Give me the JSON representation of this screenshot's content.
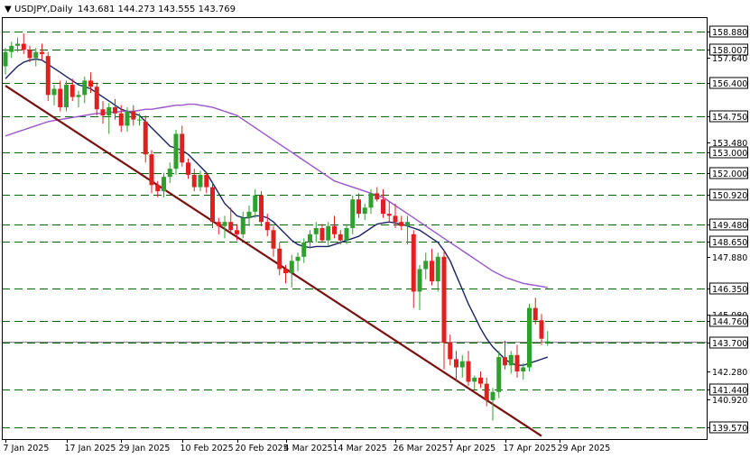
{
  "header": {
    "arrow": "▼",
    "symbol": "USDJPY,Daily",
    "ohlc": "143.681 144.273 143.555 143.769"
  },
  "chart_data": {
    "type": "candlestick",
    "symbol": "USDJPY",
    "timeframe": "Daily",
    "ylim": [
      139.0,
      159.6
    ],
    "y_ticks": [
      {
        "value": 158.88,
        "label": "158.880",
        "boxed": true
      },
      {
        "value": 158.007,
        "label": "158.007",
        "boxed": true
      },
      {
        "value": 157.64,
        "label": "157.640",
        "boxed": false
      },
      {
        "value": 156.4,
        "label": "156.400",
        "boxed": true
      },
      {
        "value": 154.75,
        "label": "154.750",
        "boxed": true
      },
      {
        "value": 153.48,
        "label": "153.480",
        "boxed": false
      },
      {
        "value": 153.0,
        "label": "153.000",
        "boxed": true
      },
      {
        "value": 152.0,
        "label": "152.000",
        "boxed": true
      },
      {
        "value": 150.92,
        "label": "150.920",
        "boxed": true
      },
      {
        "value": 149.48,
        "label": "149.480",
        "boxed": true
      },
      {
        "value": 148.65,
        "label": "148.650",
        "boxed": true
      },
      {
        "value": 147.88,
        "label": "147.880",
        "boxed": false
      },
      {
        "value": 146.35,
        "label": "146.350",
        "boxed": true
      },
      {
        "value": 145.08,
        "label": "145.080",
        "boxed": false
      },
      {
        "value": 144.76,
        "label": "144.760",
        "boxed": true
      },
      {
        "value": 143.7,
        "label": "143.700",
        "boxed": true
      },
      {
        "value": 142.28,
        "label": "142.280",
        "boxed": false
      },
      {
        "value": 141.44,
        "label": "141.440",
        "boxed": true
      },
      {
        "value": 140.92,
        "label": "140.920",
        "boxed": false
      },
      {
        "value": 139.57,
        "label": "139.570",
        "boxed": true
      }
    ],
    "levels": [
      158.88,
      158.007,
      156.4,
      154.75,
      153.0,
      152.0,
      150.92,
      149.48,
      148.65,
      146.35,
      144.76,
      143.7,
      141.44,
      139.57
    ],
    "current_price_line": 143.769,
    "x_labels": [
      {
        "bar": 0,
        "label": "7 Jan 2025"
      },
      {
        "bar": 10,
        "label": "17 Jan 2025"
      },
      {
        "bar": 19,
        "label": "29 Jan 2025"
      },
      {
        "bar": 29,
        "label": "10 Feb 2025"
      },
      {
        "bar": 38,
        "label": "20 Feb 2025"
      },
      {
        "bar": 46,
        "label": "4 Mar 2025"
      },
      {
        "bar": 54,
        "label": "14 Mar 2025"
      },
      {
        "bar": 64,
        "label": "26 Mar 2025"
      },
      {
        "bar": 73,
        "label": "7 Apr 2025"
      },
      {
        "bar": 82,
        "label": "17 Apr 2025"
      },
      {
        "bar": 91,
        "label": "29 Apr 2025"
      }
    ],
    "candles": [
      [
        157.2,
        158.1,
        156.8,
        157.9
      ],
      [
        157.9,
        158.4,
        157.6,
        158.2
      ],
      [
        158.2,
        158.6,
        157.9,
        158.3
      ],
      [
        158.3,
        158.8,
        157.8,
        158.0
      ],
      [
        158.0,
        158.2,
        157.4,
        157.6
      ],
      [
        157.6,
        158.1,
        157.2,
        157.9
      ],
      [
        157.9,
        158.3,
        157.5,
        157.8
      ],
      [
        157.7,
        157.9,
        155.5,
        155.8
      ],
      [
        155.8,
        156.3,
        155.3,
        156.1
      ],
      [
        156.1,
        156.5,
        155.0,
        155.2
      ],
      [
        155.2,
        156.5,
        155.0,
        156.3
      ],
      [
        156.3,
        156.6,
        155.5,
        155.7
      ],
      [
        155.7,
        156.0,
        155.2,
        155.8
      ],
      [
        155.8,
        156.7,
        155.4,
        156.5
      ],
      [
        156.5,
        156.9,
        155.9,
        156.2
      ],
      [
        156.2,
        156.4,
        154.8,
        155.1
      ],
      [
        155.1,
        155.5,
        154.4,
        154.8
      ],
      [
        154.8,
        155.4,
        153.9,
        155.2
      ],
      [
        155.2,
        155.6,
        154.6,
        154.9
      ],
      [
        154.9,
        155.3,
        154.0,
        154.3
      ],
      [
        154.3,
        155.2,
        154.0,
        155.0
      ],
      [
        155.0,
        155.3,
        154.3,
        154.6
      ],
      [
        154.6,
        154.9,
        154.3,
        154.6
      ],
      [
        154.5,
        154.8,
        152.5,
        152.9
      ],
      [
        152.9,
        153.1,
        151.0,
        151.4
      ],
      [
        151.4,
        151.6,
        150.8,
        151.1
      ],
      [
        151.1,
        152.0,
        150.8,
        151.8
      ],
      [
        151.8,
        152.5,
        151.5,
        152.2
      ],
      [
        152.2,
        154.1,
        151.9,
        153.9
      ],
      [
        153.9,
        154.3,
        152.3,
        152.5
      ],
      [
        152.5,
        152.7,
        151.7,
        151.9
      ],
      [
        151.9,
        152.2,
        151.1,
        151.3
      ],
      [
        151.3,
        152.1,
        151.1,
        151.9
      ],
      [
        151.9,
        152.0,
        151.0,
        151.3
      ],
      [
        151.3,
        151.5,
        149.3,
        149.6
      ],
      [
        149.6,
        149.8,
        149.0,
        149.4
      ],
      [
        149.4,
        149.9,
        148.8,
        149.6
      ],
      [
        149.6,
        150.3,
        149.1,
        149.2
      ],
      [
        149.2,
        149.5,
        148.7,
        149.0
      ],
      [
        149.0,
        150.1,
        148.8,
        149.8
      ],
      [
        149.8,
        150.4,
        149.4,
        150.1
      ],
      [
        150.1,
        151.2,
        149.8,
        150.9
      ],
      [
        150.9,
        151.1,
        149.4,
        149.6
      ],
      [
        149.6,
        150.0,
        148.9,
        149.2
      ],
      [
        149.2,
        149.4,
        147.9,
        148.3
      ],
      [
        148.3,
        148.6,
        147.0,
        147.3
      ],
      [
        147.3,
        147.5,
        146.6,
        147.1
      ],
      [
        147.1,
        148.0,
        146.4,
        147.7
      ],
      [
        147.7,
        148.1,
        147.2,
        147.9
      ],
      [
        147.9,
        148.8,
        147.6,
        148.6
      ],
      [
        148.6,
        149.2,
        148.3,
        149.0
      ],
      [
        149.0,
        149.6,
        148.6,
        149.3
      ],
      [
        149.3,
        149.5,
        148.6,
        148.7
      ],
      [
        148.7,
        149.6,
        148.4,
        149.4
      ],
      [
        149.4,
        149.9,
        148.8,
        149.0
      ],
      [
        149.0,
        149.2,
        148.5,
        148.7
      ],
      [
        148.7,
        149.5,
        148.5,
        149.3
      ],
      [
        149.3,
        150.9,
        149.0,
        150.7
      ],
      [
        150.7,
        151.0,
        149.8,
        150.0
      ],
      [
        150.0,
        150.5,
        149.7,
        150.3
      ],
      [
        150.3,
        151.2,
        150.0,
        151.0
      ],
      [
        151.0,
        151.3,
        150.6,
        150.7
      ],
      [
        150.7,
        151.2,
        149.8,
        150.0
      ],
      [
        150.0,
        150.6,
        149.6,
        149.9
      ],
      [
        149.9,
        150.5,
        149.3,
        149.6
      ],
      [
        149.6,
        149.9,
        149.2,
        149.4
      ],
      [
        149.4,
        149.9,
        148.5,
        149.6
      ],
      [
        149.0,
        149.2,
        145.4,
        146.2
      ],
      [
        146.2,
        147.5,
        145.3,
        147.3
      ],
      [
        147.3,
        148.1,
        146.8,
        147.7
      ],
      [
        147.7,
        148.3,
        146.5,
        146.7
      ],
      [
        146.7,
        148.1,
        146.2,
        147.9
      ],
      [
        147.9,
        148.2,
        142.4,
        143.7
      ],
      [
        143.7,
        144.1,
        142.6,
        142.9
      ],
      [
        142.9,
        143.3,
        141.8,
        142.5
      ],
      [
        142.5,
        143.1,
        142.0,
        142.8
      ],
      [
        142.8,
        143.3,
        141.6,
        141.8
      ],
      [
        141.8,
        142.1,
        141.4,
        142.0
      ],
      [
        142.0,
        142.3,
        141.5,
        141.7
      ],
      [
        141.7,
        142.0,
        140.6,
        140.9
      ],
      [
        140.9,
        141.5,
        139.9,
        141.3
      ],
      [
        141.3,
        143.3,
        141.0,
        143.0
      ],
      [
        143.0,
        143.8,
        142.4,
        142.6
      ],
      [
        142.6,
        143.3,
        142.2,
        143.1
      ],
      [
        143.1,
        143.6,
        142.0,
        142.3
      ],
      [
        142.3,
        142.7,
        141.9,
        142.5
      ],
      [
        142.5,
        145.6,
        142.3,
        145.4
      ],
      [
        145.4,
        145.9,
        144.6,
        144.8
      ],
      [
        144.8,
        145.1,
        143.6,
        143.9
      ],
      [
        143.681,
        144.273,
        143.555,
        143.769
      ]
    ],
    "moving_averages": [
      {
        "color": "#1a2266",
        "values": [
          156.6,
          156.9,
          157.2,
          157.4,
          157.5,
          157.55,
          157.5,
          157.3,
          157.1,
          156.9,
          156.7,
          156.5,
          156.3,
          156.2,
          156.1,
          155.9,
          155.7,
          155.5,
          155.3,
          155.1,
          155.0,
          154.9,
          154.8,
          154.5,
          154.2,
          153.9,
          153.6,
          153.3,
          153.2,
          153.1,
          152.9,
          152.6,
          152.3,
          152.0,
          151.5,
          151.0,
          150.5,
          150.2,
          149.9,
          149.8,
          149.8,
          149.9,
          149.9,
          149.8,
          149.6,
          149.3,
          149.0,
          148.7,
          148.5,
          148.4,
          148.35,
          148.4,
          148.4,
          148.4,
          148.5,
          148.6,
          148.7,
          148.8,
          148.9,
          149.1,
          149.3,
          149.5,
          149.55,
          149.6,
          149.55,
          149.5,
          149.4,
          149.3,
          149.2,
          149.0,
          148.8,
          148.6,
          148.2,
          147.7,
          147.0,
          146.3,
          145.6,
          145.0,
          144.4,
          143.9,
          143.5,
          143.2,
          142.9,
          142.7,
          142.6,
          142.6,
          142.7,
          142.8,
          142.9,
          143.0
        ]
      },
      {
        "color": "#9955cc",
        "values": [
          153.8,
          153.9,
          154.0,
          154.1,
          154.2,
          154.3,
          154.4,
          154.5,
          154.55,
          154.6,
          154.65,
          154.7,
          154.75,
          154.8,
          154.85,
          154.9,
          154.9,
          154.95,
          154.95,
          155.0,
          155.0,
          155.0,
          155.05,
          155.1,
          155.1,
          155.15,
          155.2,
          155.25,
          155.3,
          155.3,
          155.35,
          155.35,
          155.3,
          155.25,
          155.2,
          155.1,
          155.0,
          154.9,
          154.8,
          154.6,
          154.4,
          154.2,
          154.0,
          153.8,
          153.6,
          153.4,
          153.2,
          153.0,
          152.8,
          152.6,
          152.4,
          152.2,
          152.0,
          151.8,
          151.6,
          151.5,
          151.4,
          151.3,
          151.2,
          151.1,
          151.0,
          150.9,
          150.8,
          150.6,
          150.4,
          150.2,
          150.0,
          149.8,
          149.6,
          149.4,
          149.2,
          149.0,
          148.8,
          148.6,
          148.4,
          148.2,
          148.0,
          147.8,
          147.6,
          147.4,
          147.2,
          147.05,
          146.9,
          146.8,
          146.7,
          146.6,
          146.55,
          146.5,
          146.45,
          146.4
        ]
      }
    ],
    "trendline": {
      "color": "#7a1010",
      "from": [
        0,
        156.25
      ],
      "to": [
        88,
        139.15
      ]
    },
    "colors": {
      "up": "#2ea02e",
      "down": "#e02020",
      "level": "#006400",
      "axis": "#000000"
    }
  }
}
